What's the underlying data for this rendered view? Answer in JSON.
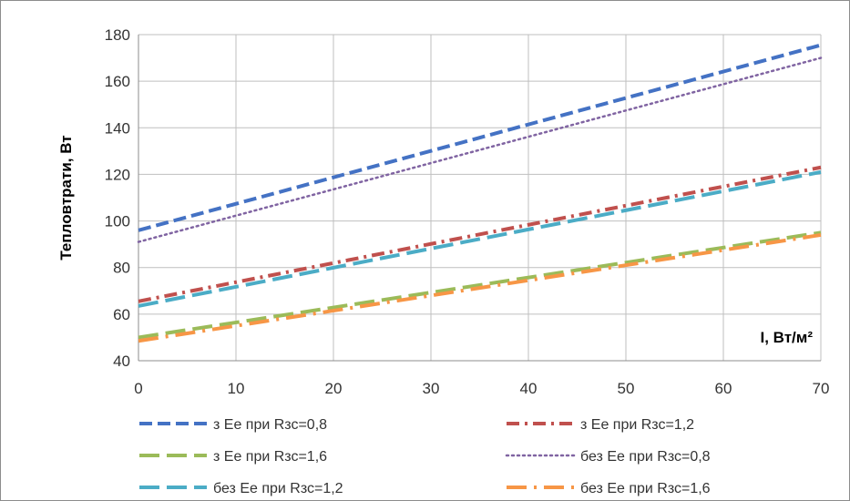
{
  "chart_data": {
    "type": "line",
    "title": "",
    "xlabel": "I, Вт/м²",
    "ylabel": "Тепловтрати, Вт",
    "xlim": [
      0,
      70
    ],
    "ylim": [
      40,
      180
    ],
    "x_ticks": [
      0,
      10,
      20,
      30,
      40,
      50,
      60,
      70
    ],
    "y_ticks": [
      40,
      60,
      80,
      100,
      120,
      140,
      160,
      180
    ],
    "grid": true,
    "legend_position": "bottom",
    "x": [
      0,
      70
    ],
    "series": [
      {
        "name": "з Ее при Rзс=0,8",
        "values": [
          96,
          175.5
        ],
        "color": "#4472C4",
        "dash": "dash"
      },
      {
        "name": "з Ее при Rзс=1,2",
        "values": [
          65.5,
          123
        ],
        "color": "#C0504D",
        "dash": "dash-dot"
      },
      {
        "name": "з Ее при Rзс=1,6",
        "values": [
          50,
          95
        ],
        "color": "#9BBB59",
        "dash": "long-dash"
      },
      {
        "name": "без Ее при Rзс=0,8",
        "values": [
          91,
          170
        ],
        "color": "#8064A2",
        "dash": "dot"
      },
      {
        "name": "без Ее при Rзс=1,2",
        "values": [
          63.5,
          121
        ],
        "color": "#4BACC6",
        "dash": "long-dash"
      },
      {
        "name": "без Ее при Rзс=1,6",
        "values": [
          48.5,
          94
        ],
        "color": "#F79646",
        "dash": "long-dash-dot"
      }
    ]
  }
}
